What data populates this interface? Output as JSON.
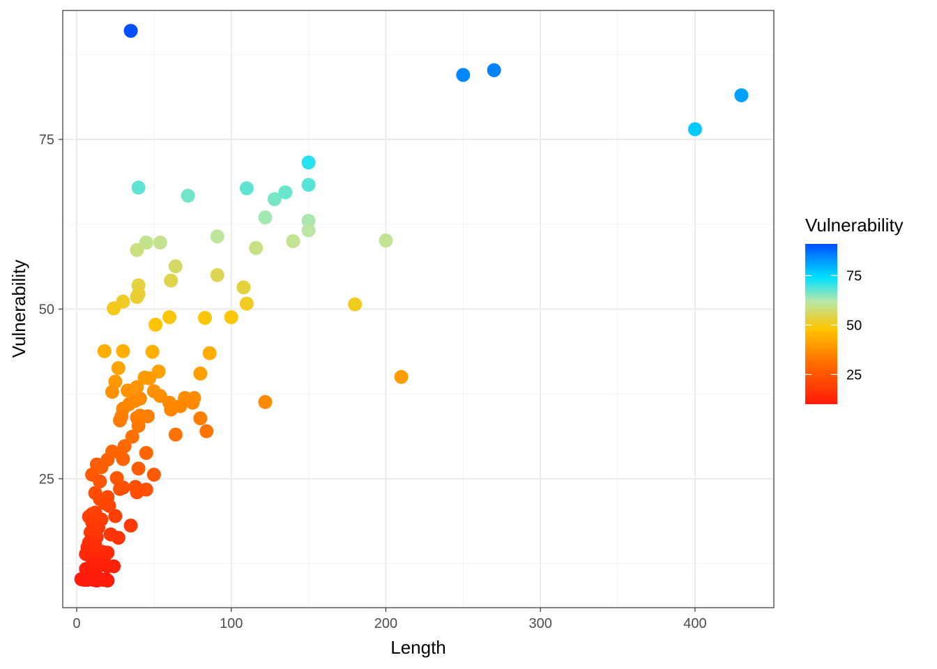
{
  "chart_data": {
    "type": "scatter",
    "title": "",
    "xlabel": "Length",
    "ylabel": "Vulnerability",
    "xlim": [
      -9,
      451
    ],
    "ylim": [
      6,
      94
    ],
    "x_ticks": [
      0,
      100,
      200,
      300,
      400
    ],
    "y_ticks": [
      25,
      50,
      75
    ],
    "x_tick_labels": [
      "0",
      "100",
      "200",
      "300",
      "400"
    ],
    "y_tick_labels": [
      "25",
      "50",
      "75"
    ],
    "grid": true,
    "color_scale": {
      "title": "Vulnerability",
      "min": 10,
      "max": 91,
      "breaks": [
        25,
        50,
        75
      ],
      "break_labels": [
        "25",
        "50",
        "75"
      ],
      "stops": [
        {
          "value": 10,
          "color": "#ff1a0a"
        },
        {
          "value": 30,
          "color": "#ff6a00"
        },
        {
          "value": 48,
          "color": "#ffc400"
        },
        {
          "value": 62,
          "color": "#b8e8a8"
        },
        {
          "value": 74,
          "color": "#00e0ff"
        },
        {
          "value": 91,
          "color": "#0050ff"
        }
      ],
      "legend_position": "right"
    },
    "points": [
      {
        "x": 35,
        "y": 91
      },
      {
        "x": 250,
        "y": 84.5
      },
      {
        "x": 270,
        "y": 85.2
      },
      {
        "x": 430,
        "y": 81.5
      },
      {
        "x": 400,
        "y": 76.5
      },
      {
        "x": 150,
        "y": 71.6
      },
      {
        "x": 40,
        "y": 67.9
      },
      {
        "x": 72,
        "y": 66.7
      },
      {
        "x": 110,
        "y": 67.8
      },
      {
        "x": 150,
        "y": 68.3
      },
      {
        "x": 128,
        "y": 66.2
      },
      {
        "x": 135,
        "y": 67.2
      },
      {
        "x": 122,
        "y": 63.5
      },
      {
        "x": 150,
        "y": 63
      },
      {
        "x": 150,
        "y": 61.6
      },
      {
        "x": 91,
        "y": 60.7
      },
      {
        "x": 140,
        "y": 60
      },
      {
        "x": 200,
        "y": 60.1
      },
      {
        "x": 116,
        "y": 59
      },
      {
        "x": 45,
        "y": 59.8
      },
      {
        "x": 54,
        "y": 59.8
      },
      {
        "x": 39,
        "y": 58.7
      },
      {
        "x": 64,
        "y": 56.3
      },
      {
        "x": 61,
        "y": 54.2
      },
      {
        "x": 91,
        "y": 55
      },
      {
        "x": 40,
        "y": 53.5
      },
      {
        "x": 108,
        "y": 53.2
      },
      {
        "x": 39,
        "y": 51.8
      },
      {
        "x": 40,
        "y": 52.2
      },
      {
        "x": 30,
        "y": 51.1
      },
      {
        "x": 24,
        "y": 50.1
      },
      {
        "x": 110,
        "y": 50.8
      },
      {
        "x": 180,
        "y": 50.7
      },
      {
        "x": 60,
        "y": 48.8
      },
      {
        "x": 83,
        "y": 48.7
      },
      {
        "x": 100,
        "y": 48.8
      },
      {
        "x": 51,
        "y": 47.7
      },
      {
        "x": 18,
        "y": 43.8
      },
      {
        "x": 30,
        "y": 43.8
      },
      {
        "x": 49,
        "y": 43.7
      },
      {
        "x": 86,
        "y": 43.5
      },
      {
        "x": 27,
        "y": 41.3
      },
      {
        "x": 53,
        "y": 40.8
      },
      {
        "x": 80,
        "y": 40.5
      },
      {
        "x": 210,
        "y": 40
      },
      {
        "x": 44,
        "y": 39.9
      },
      {
        "x": 47,
        "y": 39.8
      },
      {
        "x": 25,
        "y": 39.3
      },
      {
        "x": 33,
        "y": 38
      },
      {
        "x": 23,
        "y": 37.8
      },
      {
        "x": 39,
        "y": 38.5
      },
      {
        "x": 50,
        "y": 37.9
      },
      {
        "x": 54,
        "y": 37.2
      },
      {
        "x": 70,
        "y": 36.9
      },
      {
        "x": 76,
        "y": 36.9
      },
      {
        "x": 38,
        "y": 36.5
      },
      {
        "x": 41,
        "y": 36.8
      },
      {
        "x": 34,
        "y": 36
      },
      {
        "x": 60,
        "y": 36.2
      },
      {
        "x": 75,
        "y": 36.2
      },
      {
        "x": 122,
        "y": 36.3
      },
      {
        "x": 30,
        "y": 35.3
      },
      {
        "x": 61,
        "y": 35.2
      },
      {
        "x": 67,
        "y": 35.7
      },
      {
        "x": 29,
        "y": 34.2
      },
      {
        "x": 39,
        "y": 34
      },
      {
        "x": 46,
        "y": 34.2
      },
      {
        "x": 41,
        "y": 34.3
      },
      {
        "x": 28,
        "y": 33.6
      },
      {
        "x": 80,
        "y": 33.9
      },
      {
        "x": 40,
        "y": 32.8
      },
      {
        "x": 84,
        "y": 32
      },
      {
        "x": 64,
        "y": 31.5
      },
      {
        "x": 36,
        "y": 31.2
      },
      {
        "x": 31,
        "y": 29.8
      },
      {
        "x": 23,
        "y": 29
      },
      {
        "x": 28,
        "y": 28.8
      },
      {
        "x": 45,
        "y": 28.8
      },
      {
        "x": 30,
        "y": 27.9
      },
      {
        "x": 20,
        "y": 27.8
      },
      {
        "x": 13,
        "y": 27.1
      },
      {
        "x": 16,
        "y": 26.7
      },
      {
        "x": 40,
        "y": 26.5
      },
      {
        "x": 10,
        "y": 25.6
      },
      {
        "x": 50,
        "y": 25.6
      },
      {
        "x": 15,
        "y": 24.6
      },
      {
        "x": 26,
        "y": 25.1
      },
      {
        "x": 28,
        "y": 23.5
      },
      {
        "x": 30,
        "y": 23.7
      },
      {
        "x": 38,
        "y": 23.8
      },
      {
        "x": 45,
        "y": 23.4
      },
      {
        "x": 39,
        "y": 23
      },
      {
        "x": 12,
        "y": 22.9
      },
      {
        "x": 20,
        "y": 22.3
      },
      {
        "x": 15,
        "y": 22
      },
      {
        "x": 18,
        "y": 21.4
      },
      {
        "x": 21,
        "y": 21
      },
      {
        "x": 10,
        "y": 19.8
      },
      {
        "x": 8,
        "y": 19.4
      },
      {
        "x": 12,
        "y": 20
      },
      {
        "x": 25,
        "y": 19.5
      },
      {
        "x": 10,
        "y": 18.6
      },
      {
        "x": 16,
        "y": 19
      },
      {
        "x": 14,
        "y": 17.8
      },
      {
        "x": 35,
        "y": 18.1
      },
      {
        "x": 9,
        "y": 17.1
      },
      {
        "x": 13,
        "y": 16.4
      },
      {
        "x": 22,
        "y": 16.8
      },
      {
        "x": 27,
        "y": 16.3
      },
      {
        "x": 8,
        "y": 15.6
      },
      {
        "x": 12,
        "y": 15.2
      },
      {
        "x": 7,
        "y": 14.9
      },
      {
        "x": 10,
        "y": 14.5
      },
      {
        "x": 17,
        "y": 14.2
      },
      {
        "x": 20,
        "y": 14.1
      },
      {
        "x": 6,
        "y": 13.9
      },
      {
        "x": 9,
        "y": 13.5
      },
      {
        "x": 13,
        "y": 13.3
      },
      {
        "x": 15,
        "y": 13.1
      },
      {
        "x": 18,
        "y": 13.6
      },
      {
        "x": 11,
        "y": 12.4
      },
      {
        "x": 16,
        "y": 12.4
      },
      {
        "x": 20,
        "y": 12.1
      },
      {
        "x": 24,
        "y": 12.1
      },
      {
        "x": 6,
        "y": 11.7
      },
      {
        "x": 9,
        "y": 11.6
      },
      {
        "x": 13,
        "y": 11.9
      },
      {
        "x": 8,
        "y": 11
      },
      {
        "x": 12,
        "y": 11.2
      },
      {
        "x": 3,
        "y": 10.2
      },
      {
        "x": 5,
        "y": 10.1
      },
      {
        "x": 7,
        "y": 10.1
      },
      {
        "x": 9,
        "y": 10.2
      },
      {
        "x": 11,
        "y": 10.1
      },
      {
        "x": 13,
        "y": 10
      },
      {
        "x": 15,
        "y": 10.2
      },
      {
        "x": 17,
        "y": 10.1
      },
      {
        "x": 19,
        "y": 10.2
      },
      {
        "x": 20,
        "y": 10
      }
    ]
  }
}
